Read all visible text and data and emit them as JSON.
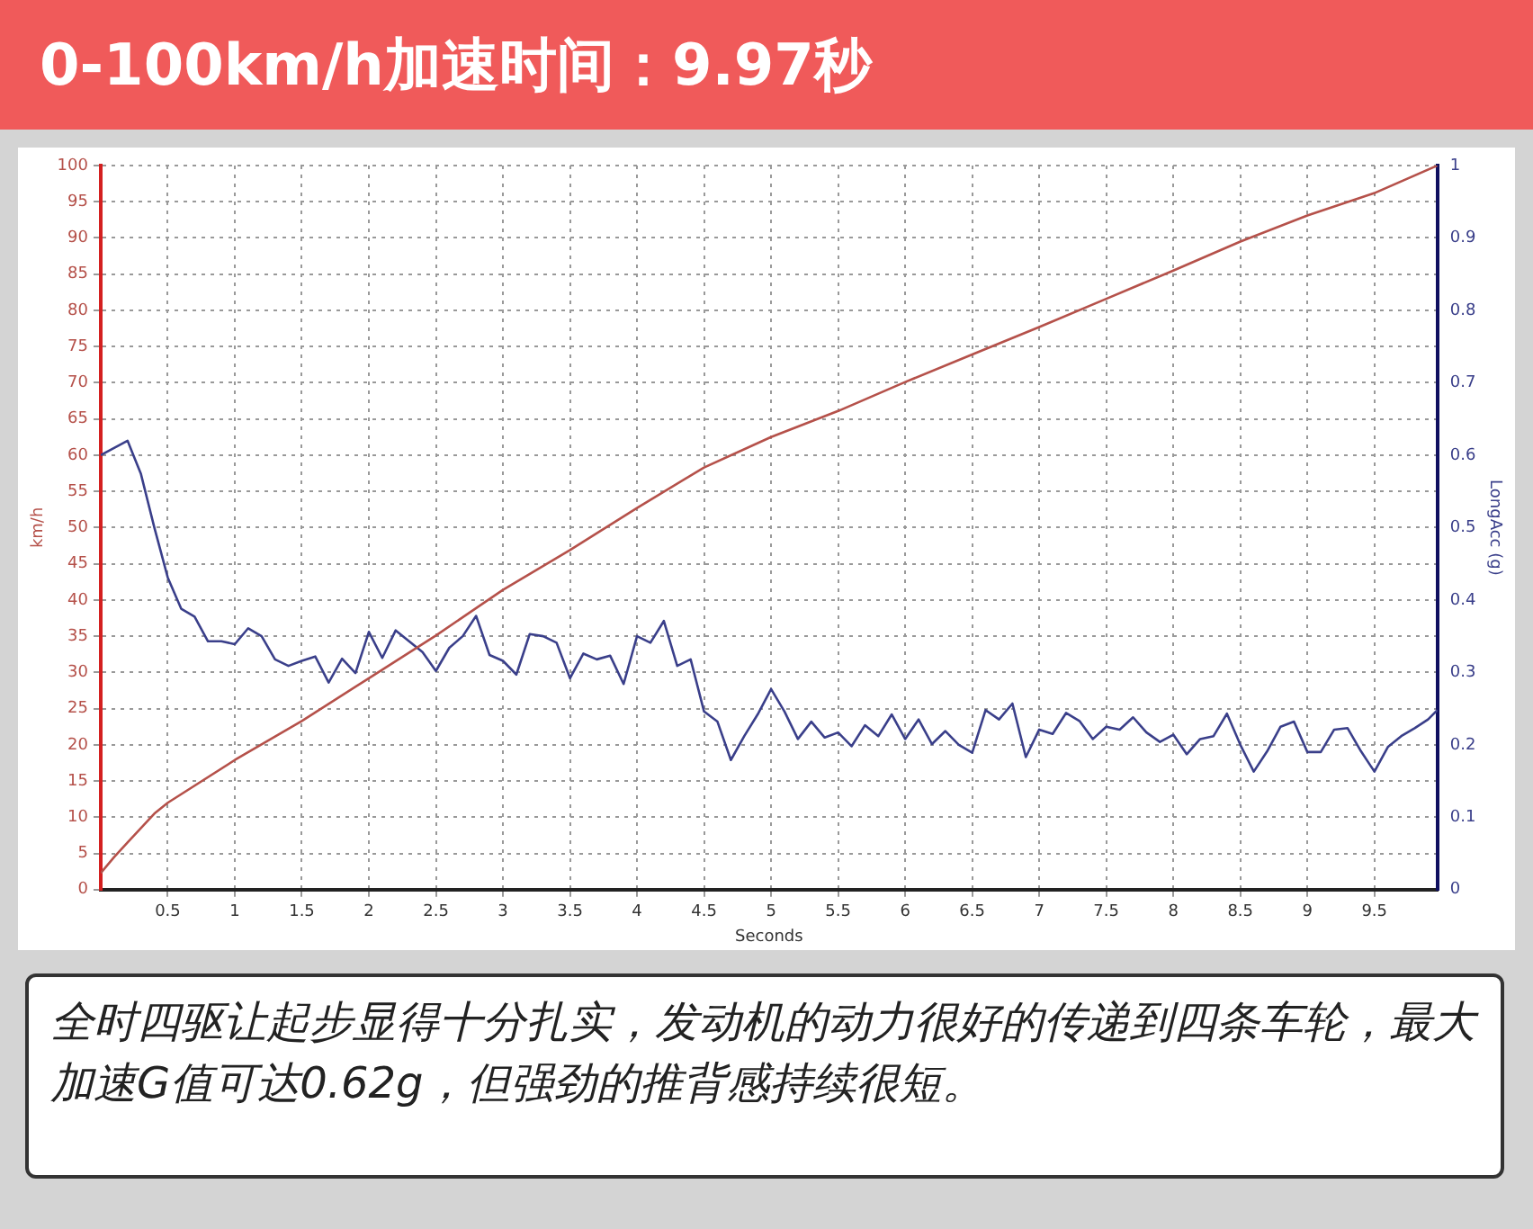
{
  "chart_data": {
    "type": "line",
    "title": "0-100km/h加速时间：9.97秒",
    "xlabel": "Seconds",
    "ylabel": "km/h",
    "y2label": "LongAcc (g)",
    "xlim": [
      0,
      9.97
    ],
    "xticks": [
      0.5,
      1,
      1.5,
      2,
      2.5,
      3,
      3.5,
      4,
      4.5,
      5,
      5.5,
      6,
      6.5,
      7,
      7.5,
      8,
      8.5,
      9,
      9.5
    ],
    "ylim": [
      0,
      100
    ],
    "yticks": [
      0,
      5,
      10,
      15,
      20,
      25,
      30,
      35,
      40,
      45,
      50,
      55,
      60,
      65,
      70,
      75,
      80,
      85,
      90,
      95,
      100
    ],
    "y2lim": [
      0,
      1
    ],
    "y2ticks": [
      0,
      0.1,
      0.2,
      0.3,
      0.4,
      0.5,
      0.6,
      0.7,
      0.8,
      0.9,
      1
    ],
    "grid": true,
    "marker": "none",
    "series": [
      {
        "color": "#b5514a",
        "x": [
          0,
          0.1,
          0.2,
          0.3,
          0.4,
          0.5,
          1,
          1.5,
          2,
          2.5,
          3,
          3.5,
          4,
          4.5,
          5,
          5.5,
          6,
          6.5,
          7,
          7.5,
          8,
          8.5,
          9,
          9.5,
          9.97
        ],
        "values": [
          2.3,
          4.5,
          6.5,
          8.5,
          10.5,
          12,
          17.9,
          23.3,
          29.2,
          35.1,
          41.4,
          46.9,
          52.7,
          58.3,
          62.5,
          66.1,
          70.1,
          73.9,
          77.7,
          81.6,
          85.5,
          89.5,
          93.1,
          96.2,
          100
        ]
      },
      {
        "color": "#3a3f8a",
        "axis": "y2",
        "x": [
          0,
          0.1,
          0.2,
          0.3,
          0.4,
          0.5,
          0.6,
          0.7,
          0.8,
          0.9,
          1,
          1.1,
          1.2,
          1.3,
          1.4,
          1.5,
          1.6,
          1.7,
          1.8,
          1.9,
          2,
          2.1,
          2.2,
          2.3,
          2.4,
          2.5,
          2.6,
          2.7,
          2.8,
          2.9,
          3,
          3.1,
          3.2,
          3.3,
          3.4,
          3.5,
          3.6,
          3.7,
          3.8,
          3.9,
          4,
          4.1,
          4.2,
          4.3,
          4.4,
          4.5,
          4.6,
          4.7,
          4.8,
          4.9,
          5,
          5.1,
          5.2,
          5.3,
          5.4,
          5.5,
          5.6,
          5.7,
          5.8,
          5.9,
          6,
          6.1,
          6.2,
          6.3,
          6.4,
          6.5,
          6.6,
          6.7,
          6.8,
          6.9,
          7,
          7.1,
          7.2,
          7.3,
          7.4,
          7.5,
          7.6,
          7.7,
          7.8,
          7.9,
          8,
          8.1,
          8.2,
          8.3,
          8.4,
          8.5,
          8.6,
          8.7,
          8.8,
          8.9,
          9,
          9.1,
          9.2,
          9.3,
          9.4,
          9.5,
          9.6,
          9.7,
          9.8,
          9.9,
          9.97
        ],
        "values": [
          0.6,
          0.61,
          0.62,
          0.574,
          0.5,
          0.431,
          0.388,
          0.377,
          0.343,
          0.343,
          0.339,
          0.361,
          0.35,
          0.318,
          0.309,
          0.316,
          0.322,
          0.286,
          0.319,
          0.299,
          0.356,
          0.32,
          0.358,
          0.343,
          0.328,
          0.302,
          0.334,
          0.35,
          0.378,
          0.324,
          0.316,
          0.297,
          0.353,
          0.35,
          0.341,
          0.292,
          0.326,
          0.318,
          0.323,
          0.284,
          0.35,
          0.341,
          0.371,
          0.309,
          0.318,
          0.246,
          0.232,
          0.179,
          0.212,
          0.242,
          0.277,
          0.246,
          0.208,
          0.232,
          0.21,
          0.217,
          0.198,
          0.227,
          0.212,
          0.242,
          0.208,
          0.235,
          0.201,
          0.219,
          0.2,
          0.189,
          0.248,
          0.235,
          0.257,
          0.183,
          0.221,
          0.215,
          0.244,
          0.233,
          0.208,
          0.225,
          0.221,
          0.238,
          0.217,
          0.204,
          0.214,
          0.187,
          0.208,
          0.212,
          0.243,
          0.2,
          0.163,
          0.191,
          0.225,
          0.232,
          0.19,
          0.19,
          0.221,
          0.223,
          0.191,
          0.163,
          0.197,
          0.212,
          0.223,
          0.235,
          0.248
        ]
      }
    ],
    "annotations": [
      "全时四驱让起步显得十分扎实，发动机的动力很好的传递到四条车轮，最大加速G值可达0.62g，但强劲的推背感持续很短。"
    ]
  }
}
